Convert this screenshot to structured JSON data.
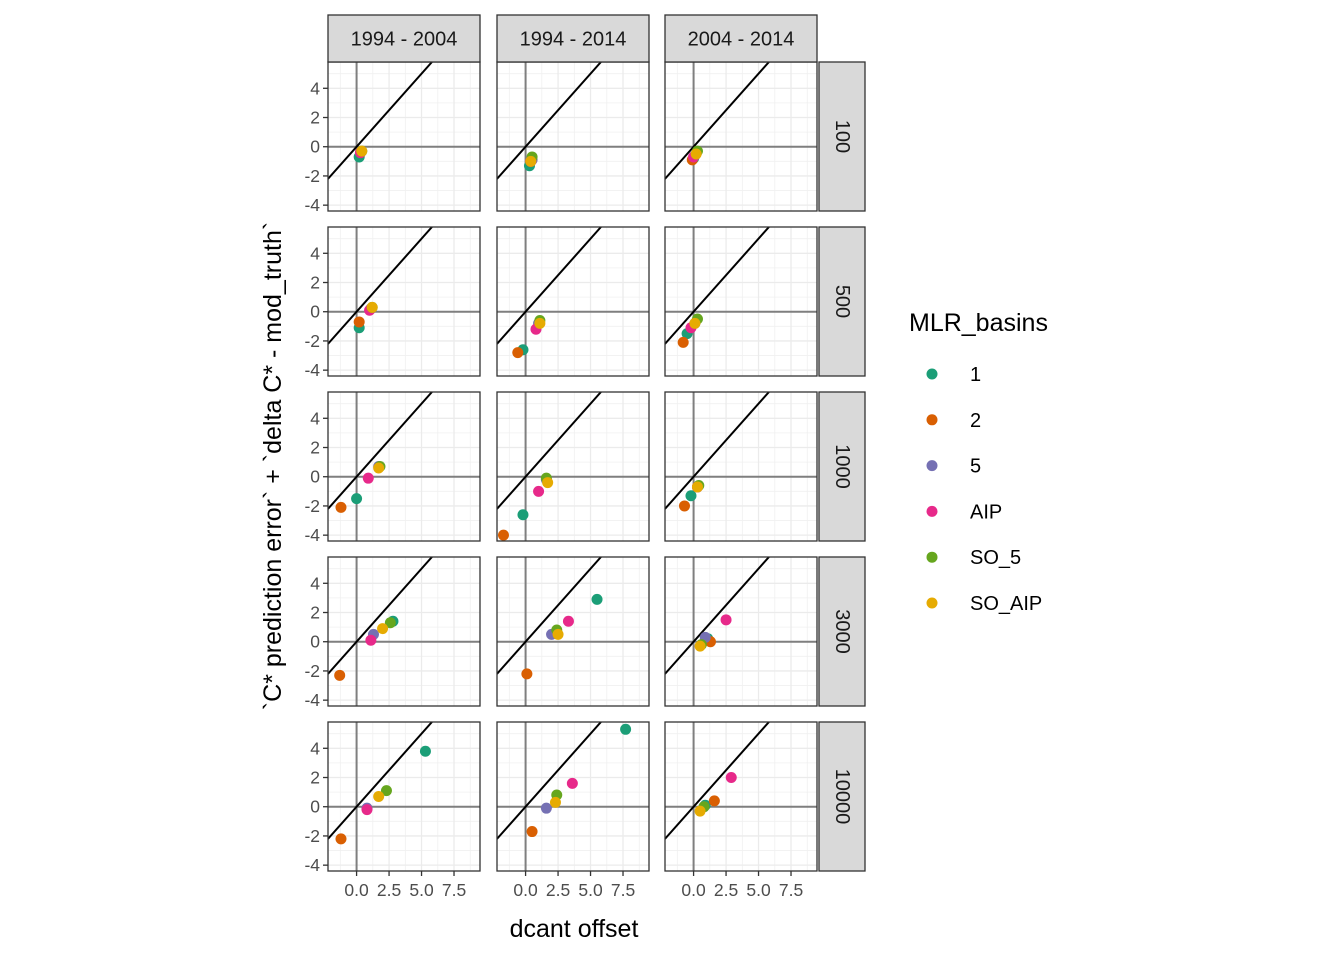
{
  "chart_data": {
    "type": "scatter",
    "facet_columns": [
      "1994 - 2004",
      "1994 - 2014",
      "2004 - 2014"
    ],
    "facet_rows": [
      "100",
      "500",
      "1000",
      "3000",
      "10000"
    ],
    "xlabel": "dcant offset",
    "ylabel": "`C* prediction error` + `delta C* - mod_truth`",
    "x_ticks": [
      0.0,
      2.5,
      5.0,
      7.5
    ],
    "x_tick_labels": [
      "0.0",
      "2.5",
      "5.0",
      "7.5"
    ],
    "y_ticks": [
      -4,
      -2,
      0,
      2,
      4
    ],
    "y_tick_labels": [
      "-4",
      "-2",
      "0",
      "2",
      "4"
    ],
    "xlim": [
      -2.2,
      9.5
    ],
    "ylim": [
      -4.4,
      5.8
    ],
    "reference_lines": {
      "identity": true,
      "x_zero": true,
      "y_zero": true
    },
    "grid": true,
    "legend": {
      "title": "MLR_basins",
      "position": "right",
      "entries": [
        {
          "label": "1",
          "color": "#1b9e77"
        },
        {
          "label": "2",
          "color": "#d95f02"
        },
        {
          "label": "5",
          "color": "#7570b3"
        },
        {
          "label": "AIP",
          "color": "#e7298a"
        },
        {
          "label": "SO_5",
          "color": "#66a61e"
        },
        {
          "label": "SO_AIP",
          "color": "#e6ab02"
        }
      ]
    },
    "panels": [
      {
        "col": "1994 - 2004",
        "row": "100",
        "points": [
          {
            "series": "1",
            "x": 0.2,
            "y": -0.7
          },
          {
            "series": "2",
            "x": 0.3,
            "y": -0.4
          },
          {
            "series": "5",
            "x": 0.3,
            "y": -0.4
          },
          {
            "series": "AIP",
            "x": 0.3,
            "y": -0.4
          },
          {
            "series": "SO_5",
            "x": 0.4,
            "y": -0.3
          },
          {
            "series": "SO_AIP",
            "x": 0.4,
            "y": -0.3
          }
        ]
      },
      {
        "col": "1994 - 2014",
        "row": "100",
        "points": [
          {
            "series": "1",
            "x": 0.3,
            "y": -1.3
          },
          {
            "series": "2",
            "x": 0.4,
            "y": -1.0
          },
          {
            "series": "5",
            "x": 0.5,
            "y": -0.9
          },
          {
            "series": "AIP",
            "x": 0.4,
            "y": -1.0
          },
          {
            "series": "SO_5",
            "x": 0.5,
            "y": -0.7
          },
          {
            "series": "SO_AIP",
            "x": 0.4,
            "y": -1.0
          }
        ]
      },
      {
        "col": "2004 - 2014",
        "row": "100",
        "points": [
          {
            "series": "1",
            "x": 0.0,
            "y": -0.8
          },
          {
            "series": "2",
            "x": -0.1,
            "y": -0.9
          },
          {
            "series": "5",
            "x": 0.1,
            "y": -0.6
          },
          {
            "series": "AIP",
            "x": 0.0,
            "y": -0.7
          },
          {
            "series": "SO_5",
            "x": 0.3,
            "y": -0.3
          },
          {
            "series": "SO_AIP",
            "x": 0.2,
            "y": -0.5
          }
        ]
      },
      {
        "col": "1994 - 2004",
        "row": "500",
        "points": [
          {
            "series": "1",
            "x": 0.2,
            "y": -1.1
          },
          {
            "series": "2",
            "x": 0.2,
            "y": -0.7
          },
          {
            "series": "5",
            "x": 1.1,
            "y": 0.2
          },
          {
            "series": "AIP",
            "x": 1.0,
            "y": 0.1
          },
          {
            "series": "SO_5",
            "x": 1.2,
            "y": 0.3
          },
          {
            "series": "SO_AIP",
            "x": 1.2,
            "y": 0.3
          }
        ]
      },
      {
        "col": "1994 - 2014",
        "row": "500",
        "points": [
          {
            "series": "1",
            "x": -0.2,
            "y": -2.6
          },
          {
            "series": "2",
            "x": -0.6,
            "y": -2.8
          },
          {
            "series": "5",
            "x": 1.0,
            "y": -0.8
          },
          {
            "series": "AIP",
            "x": 0.8,
            "y": -1.2
          },
          {
            "series": "SO_5",
            "x": 1.1,
            "y": -0.6
          },
          {
            "series": "SO_AIP",
            "x": 1.1,
            "y": -0.8
          }
        ]
      },
      {
        "col": "2004 - 2014",
        "row": "500",
        "points": [
          {
            "series": "1",
            "x": -0.5,
            "y": -1.5
          },
          {
            "series": "2",
            "x": -0.8,
            "y": -2.1
          },
          {
            "series": "5",
            "x": 0.1,
            "y": -0.8
          },
          {
            "series": "AIP",
            "x": -0.2,
            "y": -1.1
          },
          {
            "series": "SO_5",
            "x": 0.3,
            "y": -0.5
          },
          {
            "series": "SO_AIP",
            "x": 0.1,
            "y": -0.8
          }
        ]
      },
      {
        "col": "1994 - 2004",
        "row": "1000",
        "points": [
          {
            "series": "1",
            "x": 0.0,
            "y": -1.5
          },
          {
            "series": "2",
            "x": -1.2,
            "y": -2.1
          },
          {
            "series": "5",
            "x": 1.7,
            "y": 0.7
          },
          {
            "series": "AIP",
            "x": 0.9,
            "y": -0.1
          },
          {
            "series": "SO_5",
            "x": 1.8,
            "y": 0.7
          },
          {
            "series": "SO_AIP",
            "x": 1.7,
            "y": 0.6
          }
        ]
      },
      {
        "col": "1994 - 2014",
        "row": "1000",
        "points": [
          {
            "series": "1",
            "x": -0.2,
            "y": -2.6
          },
          {
            "series": "2",
            "x": -1.7,
            "y": -4.0
          },
          {
            "series": "5",
            "x": 1.6,
            "y": -0.2
          },
          {
            "series": "AIP",
            "x": 1.0,
            "y": -1.0
          },
          {
            "series": "SO_5",
            "x": 1.6,
            "y": -0.1
          },
          {
            "series": "SO_AIP",
            "x": 1.7,
            "y": -0.4
          }
        ]
      },
      {
        "col": "2004 - 2014",
        "row": "1000",
        "points": [
          {
            "series": "1",
            "x": -0.2,
            "y": -1.3
          },
          {
            "series": "2",
            "x": -0.7,
            "y": -2.0
          },
          {
            "series": "5",
            "x": 0.3,
            "y": -0.7
          },
          {
            "series": "AIP",
            "x": 0.3,
            "y": -0.7
          },
          {
            "series": "SO_5",
            "x": 0.4,
            "y": -0.6
          },
          {
            "series": "SO_AIP",
            "x": 0.3,
            "y": -0.7
          }
        ]
      },
      {
        "col": "1994 - 2004",
        "row": "3000",
        "points": [
          {
            "series": "1",
            "x": 2.8,
            "y": 1.4
          },
          {
            "series": "2",
            "x": -1.3,
            "y": -2.3
          },
          {
            "series": "5",
            "x": 1.3,
            "y": 0.5
          },
          {
            "series": "AIP",
            "x": 1.1,
            "y": 0.1
          },
          {
            "series": "SO_5",
            "x": 2.6,
            "y": 1.3
          },
          {
            "series": "SO_AIP",
            "x": 2.0,
            "y": 0.9
          }
        ]
      },
      {
        "col": "1994 - 2014",
        "row": "3000",
        "points": [
          {
            "series": "1",
            "x": 5.5,
            "y": 2.9
          },
          {
            "series": "2",
            "x": 0.1,
            "y": -2.2
          },
          {
            "series": "5",
            "x": 2.0,
            "y": 0.5
          },
          {
            "series": "AIP",
            "x": 3.3,
            "y": 1.4
          },
          {
            "series": "SO_5",
            "x": 2.4,
            "y": 0.8
          },
          {
            "series": "SO_AIP",
            "x": 2.5,
            "y": 0.5
          }
        ]
      },
      {
        "col": "2004 - 2014",
        "row": "3000",
        "points": [
          {
            "series": "1",
            "x": 1.1,
            "y": 0.2
          },
          {
            "series": "2",
            "x": 1.3,
            "y": 0.0
          },
          {
            "series": "5",
            "x": 0.9,
            "y": 0.3
          },
          {
            "series": "AIP",
            "x": 2.5,
            "y": 1.5
          },
          {
            "series": "SO_5",
            "x": 0.6,
            "y": -0.2
          },
          {
            "series": "SO_AIP",
            "x": 0.5,
            "y": -0.3
          }
        ]
      },
      {
        "col": "1994 - 2004",
        "row": "10000",
        "points": [
          {
            "series": "1",
            "x": 5.3,
            "y": 3.8
          },
          {
            "series": "2",
            "x": -1.2,
            "y": -2.2
          },
          {
            "series": "5",
            "x": 0.8,
            "y": -0.1
          },
          {
            "series": "AIP",
            "x": 0.8,
            "y": -0.2
          },
          {
            "series": "SO_5",
            "x": 2.3,
            "y": 1.1
          },
          {
            "series": "SO_AIP",
            "x": 1.7,
            "y": 0.7
          }
        ]
      },
      {
        "col": "1994 - 2014",
        "row": "10000",
        "points": [
          {
            "series": "1",
            "x": 7.7,
            "y": 5.3
          },
          {
            "series": "2",
            "x": 0.5,
            "y": -1.7
          },
          {
            "series": "5",
            "x": 1.6,
            "y": -0.1
          },
          {
            "series": "AIP",
            "x": 3.6,
            "y": 1.6
          },
          {
            "series": "SO_5",
            "x": 2.4,
            "y": 0.8
          },
          {
            "series": "SO_AIP",
            "x": 2.3,
            "y": 0.3
          }
        ]
      },
      {
        "col": "2004 - 2014",
        "row": "10000",
        "points": [
          {
            "series": "1",
            "x": 0.9,
            "y": 0.1
          },
          {
            "series": "2",
            "x": 1.6,
            "y": 0.4
          },
          {
            "series": "5",
            "x": 0.8,
            "y": 0.0
          },
          {
            "series": "AIP",
            "x": 2.9,
            "y": 2.0
          },
          {
            "series": "SO_5",
            "x": 0.8,
            "y": 0.0
          },
          {
            "series": "SO_AIP",
            "x": 0.5,
            "y": -0.3
          }
        ]
      }
    ]
  }
}
